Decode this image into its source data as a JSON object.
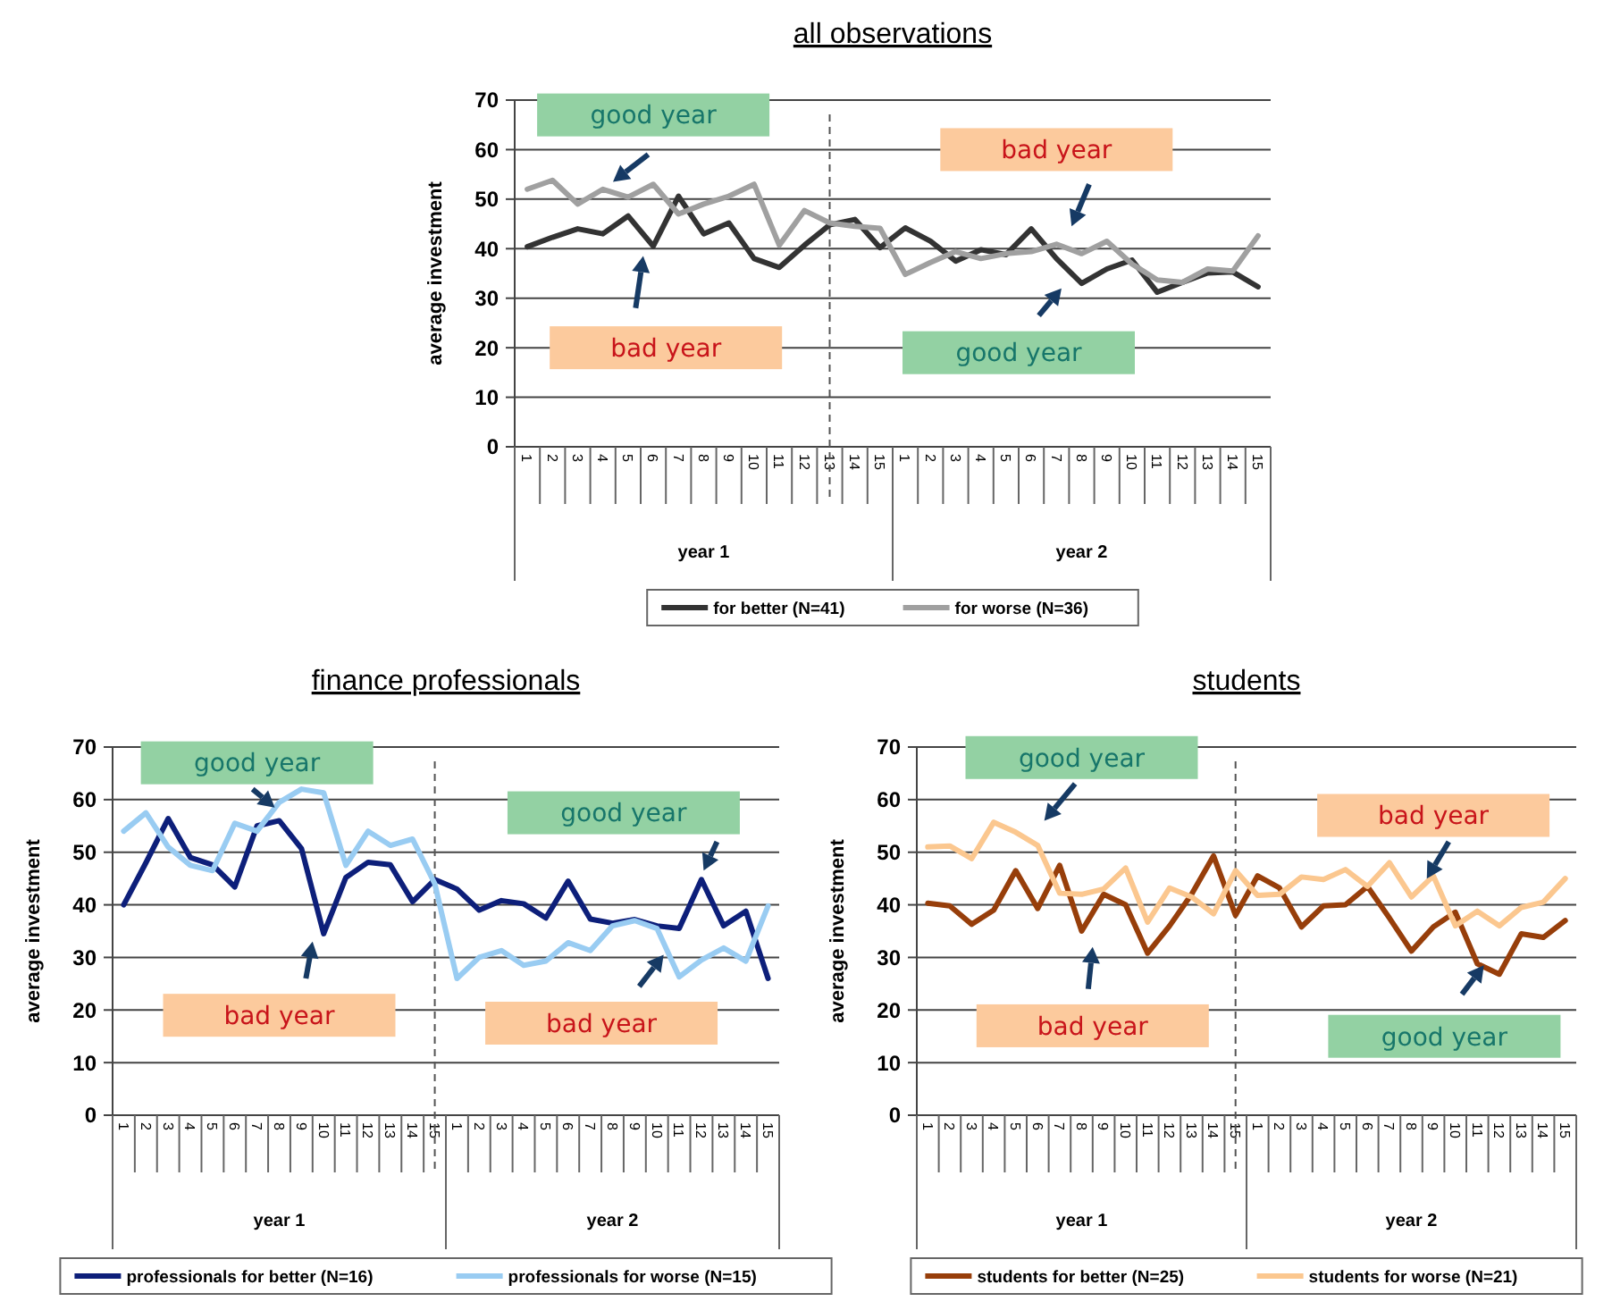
{
  "chart_data": [
    {
      "type": "line",
      "title": "all observations",
      "ylabel": "average investment",
      "categories": [
        "1",
        "2",
        "3",
        "4",
        "5",
        "6",
        "7",
        "8",
        "9",
        "10",
        "11",
        "12",
        "13",
        "14",
        "15",
        "1",
        "2",
        "3",
        "4",
        "5",
        "6",
        "7",
        "8",
        "9",
        "10",
        "11",
        "12",
        "13",
        "14",
        "15"
      ],
      "ylim": [
        0,
        70
      ],
      "yticks": [
        0,
        10,
        20,
        30,
        40,
        50,
        60,
        70
      ],
      "grid": "y",
      "legend": "bottom",
      "line_style": "solid",
      "series": [
        {
          "name": "for better (N=41)",
          "color": "#333333",
          "values": [
            40.4,
            42.3,
            44,
            43,
            46.6,
            40.5,
            50.6,
            43,
            45.2,
            38,
            36.2,
            40.7,
            44.8,
            45.9,
            40.2,
            44.2,
            41.5,
            37.5,
            39.8,
            38.8,
            44,
            38,
            33,
            35.9,
            37.7,
            31.2,
            33.2,
            35.1,
            35.3,
            32.3
          ]
        },
        {
          "name": "for worse (N=36)",
          "color": "#a0a0a0",
          "values": [
            52,
            53.8,
            49,
            52,
            50.4,
            53,
            47,
            49,
            50.6,
            53,
            40.7,
            47.7,
            45.2,
            44.5,
            44.1,
            34.8,
            37.2,
            39.4,
            38,
            39,
            39.4,
            40.9,
            39,
            41.5,
            36.9,
            33.7,
            33.2,
            35.9,
            35.5,
            42.6
          ]
        }
      ],
      "ref_lines": [
        {
          "axis": "x",
          "value": "13",
          "color": "#555555",
          "line_style": "dashed"
        }
      ],
      "annotations": [
        "good year",
        "bad year",
        "good year",
        "bad year",
        "year 1",
        "year 2"
      ]
    },
    {
      "type": "line",
      "title": "finance professionals",
      "ylabel": "average investment",
      "categories": [
        "1",
        "2",
        "3",
        "4",
        "5",
        "6",
        "7",
        "8",
        "9",
        "10",
        "11",
        "12",
        "13",
        "14",
        "15",
        "1",
        "2",
        "3",
        "4",
        "5",
        "6",
        "7",
        "8",
        "9",
        "10",
        "11",
        "12",
        "13",
        "14",
        "15"
      ],
      "ylim": [
        0,
        70
      ],
      "yticks": [
        0,
        10,
        20,
        30,
        40,
        50,
        60,
        70
      ],
      "grid": "y",
      "legend": "bottom",
      "line_style": "solid",
      "series": [
        {
          "name": "professionals for better (N=16)",
          "color": "#0d1f7a",
          "values": [
            40,
            48,
            56.4,
            49,
            47.6,
            43.4,
            55,
            56,
            50.7,
            34.5,
            45.2,
            48.1,
            47.6,
            40.6,
            44.8,
            43,
            39,
            40.8,
            40.2,
            37.5,
            44.5,
            37.3,
            36.5,
            37.2,
            36,
            35.5,
            44.8,
            36,
            38.8,
            26
          ]
        },
        {
          "name": "professionals for worse (N=15)",
          "color": "#99ccf2",
          "values": [
            54,
            57.5,
            51,
            47.5,
            46.5,
            55.5,
            54,
            59.5,
            62,
            61.3,
            47.5,
            54,
            51.3,
            52.5,
            44,
            26,
            30,
            31.3,
            28.5,
            29.3,
            32.8,
            31.3,
            36,
            37,
            35.5,
            26.3,
            29.5,
            31.8,
            29.3,
            39.8
          ]
        }
      ],
      "ref_lines": [
        {
          "axis": "x",
          "value": "15",
          "color": "#555555",
          "line_style": "dashed"
        }
      ],
      "annotations": [
        "good year",
        "bad year",
        "good year",
        "bad year",
        "year 1",
        "year 2"
      ]
    },
    {
      "type": "line",
      "title": "students",
      "ylabel": "average investment",
      "categories": [
        "1",
        "2",
        "3",
        "4",
        "5",
        "6",
        "7",
        "8",
        "9",
        "10",
        "11",
        "12",
        "13",
        "14",
        "15",
        "1",
        "2",
        "3",
        "4",
        "5",
        "6",
        "7",
        "8",
        "9",
        "10",
        "11",
        "12",
        "13",
        "14",
        "15"
      ],
      "ylim": [
        0,
        70
      ],
      "yticks": [
        0,
        10,
        20,
        30,
        40,
        50,
        60,
        70
      ],
      "grid": "y",
      "legend": "bottom",
      "line_style": "solid",
      "series": [
        {
          "name": "students for better (N=25)",
          "color": "#973e0a",
          "values": [
            40.3,
            39.8,
            36.3,
            39,
            46.5,
            39.3,
            47.5,
            35,
            42,
            40,
            30.8,
            36,
            42,
            49.3,
            38,
            45.5,
            43.2,
            35.8,
            39.8,
            40,
            43.5,
            37.5,
            31.2,
            35.8,
            38.6,
            28.8,
            26.8,
            34.5,
            33.8,
            37
          ]
        },
        {
          "name": "students for worse (N=21)",
          "color": "#fbc78f",
          "values": [
            51,
            51.2,
            48.8,
            55.7,
            53.8,
            51.3,
            42.2,
            42,
            43,
            47,
            36.7,
            43.2,
            41.5,
            38.3,
            46.5,
            41.8,
            42,
            45.3,
            44.8,
            46.7,
            43.5,
            48,
            41.5,
            45.5,
            36,
            38.8,
            36,
            39.5,
            40.5,
            45
          ]
        }
      ],
      "ref_lines": [
        {
          "axis": "x",
          "value": "15",
          "color": "#555555",
          "line_style": "dashed"
        }
      ],
      "annotations": [
        "good year",
        "bad year",
        "good year",
        "bad year",
        "year 1",
        "year 2"
      ]
    }
  ]
}
